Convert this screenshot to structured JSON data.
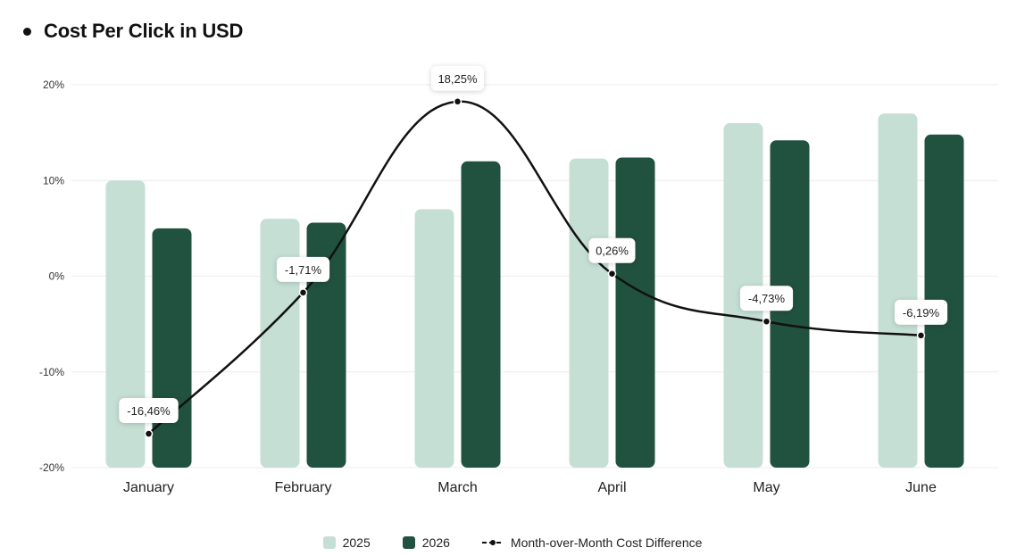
{
  "chart_data": {
    "type": "bar",
    "title": "Cost Per Click in USD",
    "categories": [
      "January",
      "February",
      "March",
      "April",
      "May",
      "June"
    ],
    "ylim": [
      -20,
      20
    ],
    "yticks": [
      "20%",
      "10%",
      "0%",
      "-10%",
      "-20%"
    ],
    "ytick_values": [
      20,
      10,
      0,
      -10,
      -20
    ],
    "grid": true,
    "legend_position": "bottom",
    "series": [
      {
        "name": "2025",
        "type": "bar",
        "color": "#c5dfd5",
        "values": [
          10,
          6,
          7,
          12.3,
          16,
          17
        ]
      },
      {
        "name": "2026",
        "type": "bar",
        "color": "#21523f",
        "values": [
          5,
          5.6,
          12,
          12.4,
          14.2,
          14.8
        ]
      },
      {
        "name": "Month-over-Month Cost Difference",
        "type": "line",
        "color": "#111111",
        "values": [
          -16.46,
          -1.71,
          18.25,
          0.26,
          -4.73,
          -6.19
        ],
        "labels": [
          "-16,46%",
          "-1,71%",
          "18,25%",
          "0,26%",
          "-4,73%",
          "-6,19%"
        ]
      }
    ]
  }
}
